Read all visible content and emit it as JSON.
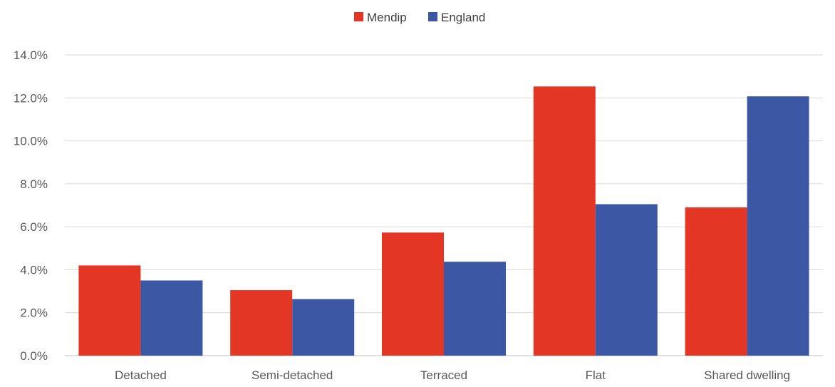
{
  "chart_data": {
    "type": "bar",
    "title": "",
    "xlabel": "",
    "ylabel": "",
    "categories": [
      "Detached",
      "Semi-detached",
      "Terraced",
      "Flat",
      "Shared dwelling"
    ],
    "series": [
      {
        "name": "Mendip",
        "color": "#e43624",
        "values": [
          4.2,
          3.05,
          5.73,
          12.53,
          6.9
        ]
      },
      {
        "name": "England",
        "color": "#3c57a3",
        "values": [
          3.5,
          2.63,
          4.37,
          7.05,
          12.07
        ]
      }
    ],
    "ylim": [
      0,
      14
    ],
    "y_ticks": [
      "0.0%",
      "2.0%",
      "4.0%",
      "6.0%",
      "8.0%",
      "10.0%",
      "12.0%",
      "14.0%"
    ],
    "grid": true,
    "legend_position": "top-center"
  }
}
